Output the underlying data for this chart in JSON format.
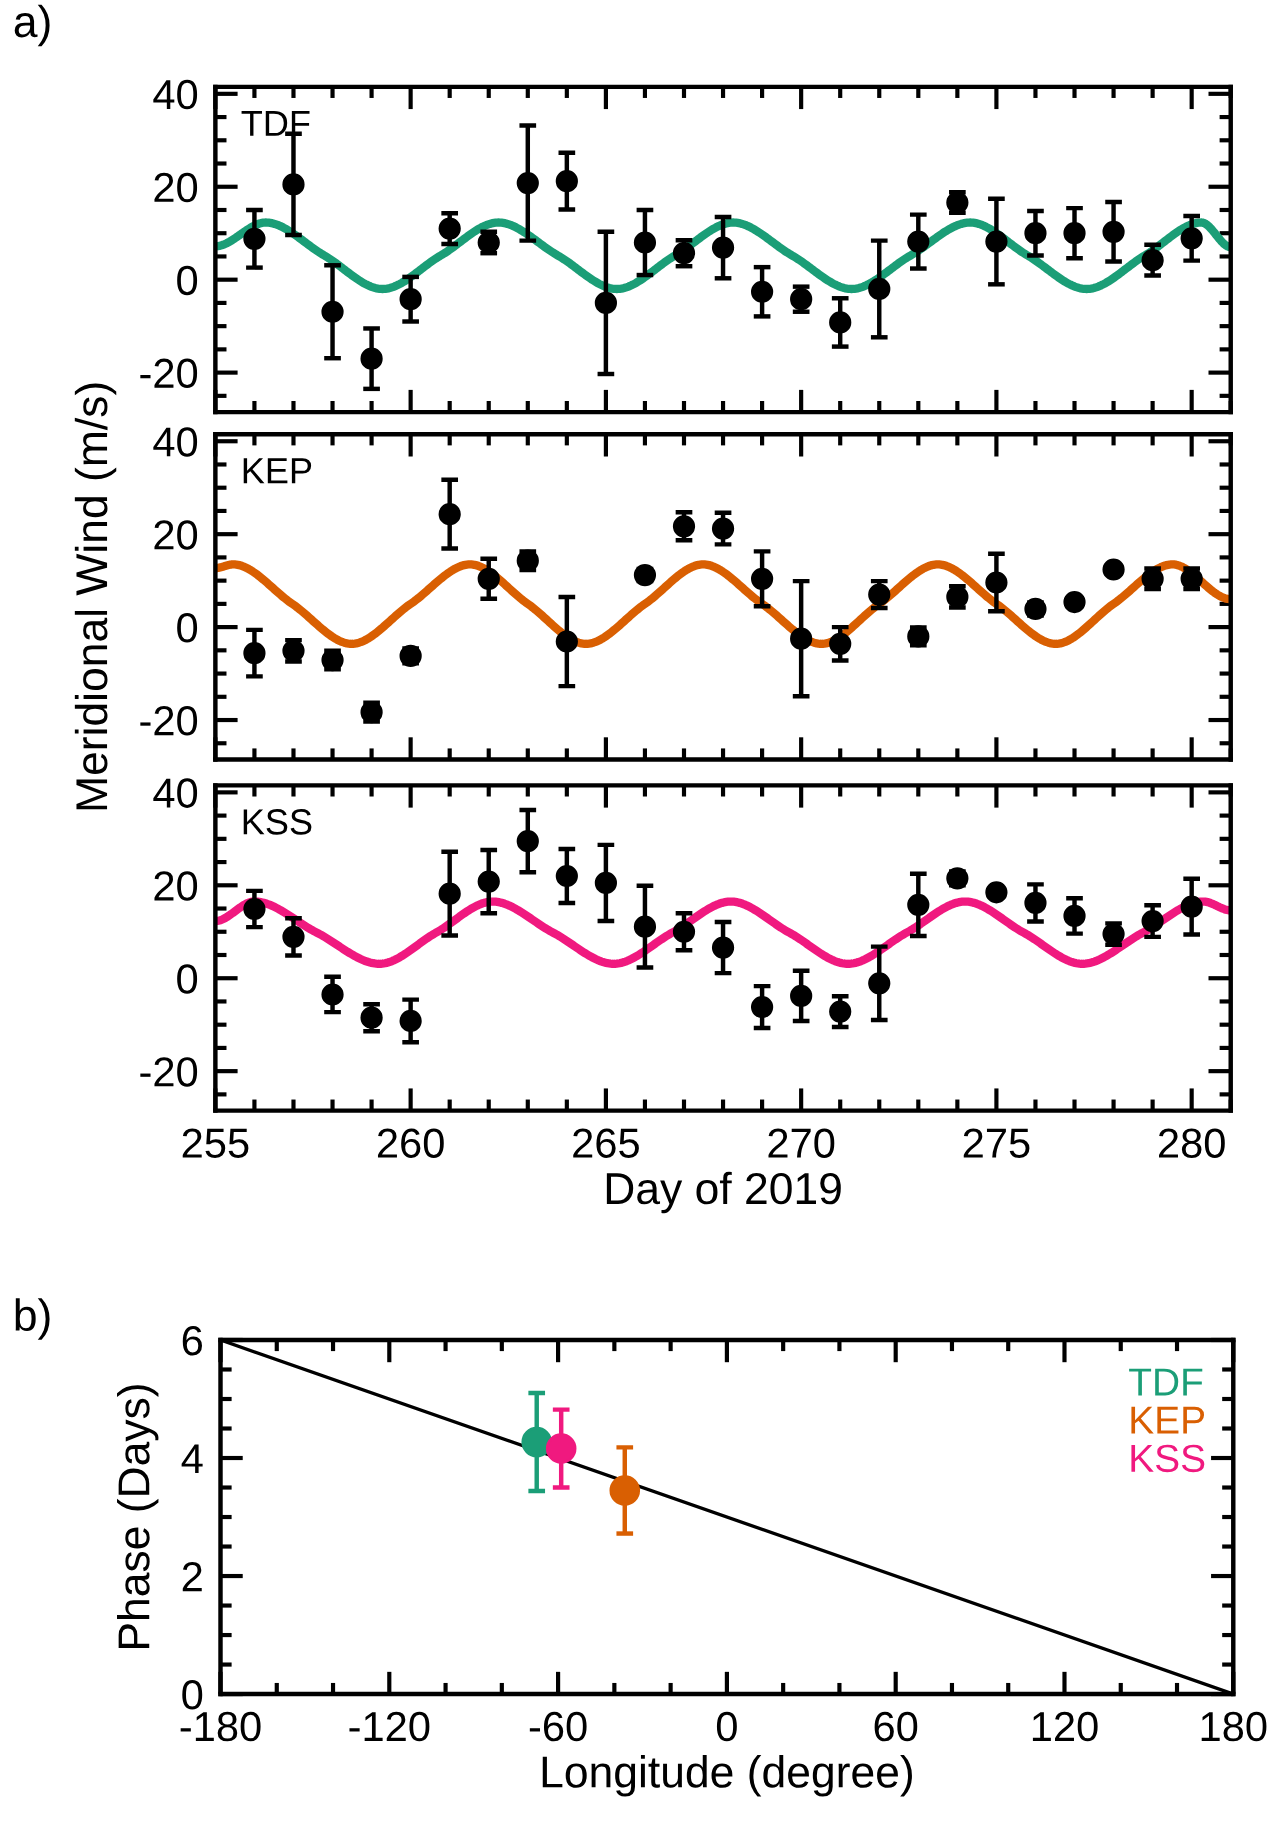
{
  "chart_data": [
    {
      "type": "scatter",
      "title": "TDF",
      "annotations": [
        "a)"
      ],
      "xlim": [
        255,
        281
      ],
      "ylim": [
        -28.5,
        41.5
      ],
      "xticks": [
        255,
        260,
        265,
        270,
        275,
        280
      ],
      "yticks": [
        -20,
        0,
        20,
        40
      ],
      "tick_labels": "y",
      "grid": false,
      "legend": false,
      "marker": "circle",
      "x": [
        256,
        257,
        258,
        259,
        260,
        261,
        262,
        263,
        264,
        265,
        266,
        267,
        268,
        269,
        270,
        271,
        272,
        273,
        274,
        275,
        276,
        277,
        278,
        279,
        280
      ],
      "series": [
        {
          "type": "scatter",
          "color": "#000000",
          "values": [
            8.8,
            20.5,
            -6.9,
            -17,
            -4.2,
            11,
            8,
            20.8,
            21.2,
            -5,
            8,
            5.7,
            6.9,
            -2.6,
            -4.2,
            -9.2,
            -2,
            8.2,
            16.6,
            8.2,
            10,
            10,
            10.3,
            4.2,
            8.9
          ],
          "errors": [
            6.2,
            10.9,
            10,
            6.5,
            4.8,
            3.3,
            2.3,
            12.4,
            6.1,
            15.3,
            7,
            2.8,
            6.6,
            5.3,
            2.7,
            5.2,
            10.4,
            5.8,
            2.2,
            9.2,
            4.8,
            5.4,
            6.4,
            3.3,
            4.8
          ]
        },
        {
          "type": "line",
          "color": "#1b9e77",
          "marker": "none",
          "x": [
            255,
            256.29,
            257.79,
            259.28,
            260.77,
            262.25,
            263.77,
            265.28,
            266.77,
            268.26,
            269.77,
            271.29,
            272.8,
            274.33,
            275.8,
            277.31,
            278.8,
            280.25,
            281
          ],
          "values": [
            7.2,
            12.3,
            5.2,
            -2,
            5.2,
            12.3,
            5.2,
            -2,
            5.2,
            12.3,
            5.2,
            -2,
            5.2,
            12.3,
            5.2,
            -2,
            5.2,
            12.3,
            7
          ]
        }
      ]
    },
    {
      "type": "scatter",
      "title": "KEP",
      "ylabel": "Meridional Wind (m/s)",
      "xlim": [
        255,
        281
      ],
      "ylim": [
        -28.5,
        41.5
      ],
      "xticks": [
        255,
        260,
        265,
        270,
        275,
        280
      ],
      "yticks": [
        -20,
        0,
        20,
        40
      ],
      "tick_labels": "y",
      "grid": false,
      "legend": false,
      "marker": "circle",
      "x": [
        256,
        257,
        258,
        259,
        260,
        261,
        262,
        263,
        264,
        265,
        266,
        267,
        268,
        269,
        270,
        271,
        272,
        273,
        274,
        275,
        276,
        277,
        278,
        279,
        280
      ],
      "series": [
        {
          "type": "scatter",
          "color": "#000000",
          "values": [
            -5.6,
            -5.1,
            -7.1,
            -18.3,
            -6.2,
            24.3,
            10.4,
            14.3,
            -3.1,
            null,
            11.2,
            21.7,
            21.2,
            10.4,
            -2.5,
            -3.6,
            7,
            -2,
            6.5,
            9.6,
            3.9,
            5.4,
            12.4,
            10.4,
            10.4
          ],
          "errors": [
            5,
            2.3,
            2,
            2,
            1.6,
            7.4,
            4.3,
            2,
            9.6,
            null,
            1.3,
            3,
            3.4,
            5.9,
            12.4,
            3.6,
            2.9,
            1.9,
            2.3,
            6.2,
            1.4,
            null,
            null,
            2.2,
            2.2
          ]
        },
        {
          "type": "line",
          "color": "#d95f02",
          "marker": "none",
          "x": [
            255,
            255.46,
            256.97,
            258.49,
            260,
            261.52,
            263,
            264.49,
            266,
            267.49,
            269,
            270.52,
            272,
            273.5,
            275,
            276.52,
            278,
            279.51,
            281
          ],
          "values": [
            12.7,
            13.5,
            5,
            -3.6,
            5,
            13.5,
            5,
            -3.6,
            5,
            13.5,
            5,
            -3.6,
            5,
            13.5,
            5,
            -3.6,
            5,
            13.5,
            6
          ]
        }
      ]
    },
    {
      "type": "scatter",
      "title": "KSS",
      "xlabel": "Day of 2019",
      "xlim": [
        255,
        281
      ],
      "ylim": [
        -28.5,
        41.5
      ],
      "xticks": [
        255,
        260,
        265,
        270,
        275,
        280
      ],
      "yticks": [
        -20,
        0,
        20,
        40
      ],
      "grid": false,
      "legend": false,
      "marker": "circle",
      "x": [
        256,
        257,
        258,
        259,
        260,
        261,
        262,
        263,
        264,
        265,
        266,
        267,
        268,
        269,
        270,
        271,
        272,
        273,
        274,
        275,
        276,
        277,
        278,
        279,
        280
      ],
      "series": [
        {
          "type": "scatter",
          "color": "#000000",
          "values": [
            14.9,
            8.9,
            -3.5,
            -8.5,
            -9.2,
            18.2,
            20.8,
            29.5,
            22,
            20.5,
            11.1,
            10,
            6.6,
            -6.2,
            -3.8,
            -7.2,
            -1.1,
            15.8,
            21.5,
            18.5,
            16.2,
            13.4,
            9.5,
            12.3,
            15.4
          ],
          "errors": [
            3.9,
            4,
            3.8,
            2.9,
            4.6,
            9,
            6.8,
            6.7,
            5.8,
            8.2,
            8.8,
            4,
            5.5,
            4.5,
            5.4,
            3.3,
            7.9,
            6.7,
            1.5,
            null,
            4,
            3.8,
            2.3,
            3.4,
            6
          ]
        },
        {
          "type": "line",
          "color": "#f0197f",
          "marker": "none",
          "x": [
            255,
            256.0,
            257.6,
            259.2,
            260.65,
            262.1,
            263.65,
            265.2,
            266.7,
            268.2,
            269.7,
            271.2,
            272.7,
            274.2,
            275.7,
            277.2,
            278.75,
            280.3,
            281
          ],
          "values": [
            12.3,
            16.5,
            9.8,
            3.1,
            9.8,
            16.5,
            9.8,
            3.1,
            9.8,
            16.5,
            9.8,
            3.1,
            9.8,
            16.5,
            9.8,
            3.1,
            9.8,
            16.5,
            14.6
          ]
        }
      ]
    },
    {
      "type": "scatter",
      "annotations": [
        "b)"
      ],
      "xlabel": "Longitude (degree)",
      "ylabel": "Phase (Days)",
      "xlim": [
        -180,
        180
      ],
      "ylim": [
        0,
        6
      ],
      "xticks": [
        -180,
        -120,
        -60,
        0,
        60,
        120,
        180
      ],
      "yticks": [
        0,
        2,
        4,
        6
      ],
      "grid": false,
      "legend": "top right",
      "marker": "circle",
      "series": [
        {
          "type": "scatter",
          "name": "TDF",
          "color": "#1b9e77",
          "x": [
            -67.6
          ],
          "values": [
            4.27
          ],
          "errors": [
            0.83
          ]
        },
        {
          "type": "scatter",
          "name": "KEP",
          "color": "#d95f02",
          "x": [
            -36.3
          ],
          "values": [
            3.45
          ],
          "errors": [
            0.73
          ]
        },
        {
          "type": "scatter",
          "name": "KSS",
          "color": "#f0197f",
          "x": [
            -58.9
          ],
          "values": [
            4.16
          ],
          "errors": [
            0.66
          ]
        },
        {
          "type": "line",
          "color": "#000000",
          "marker": "none",
          "x": [
            -180,
            180
          ],
          "values": [
            6,
            0
          ]
        }
      ]
    }
  ]
}
